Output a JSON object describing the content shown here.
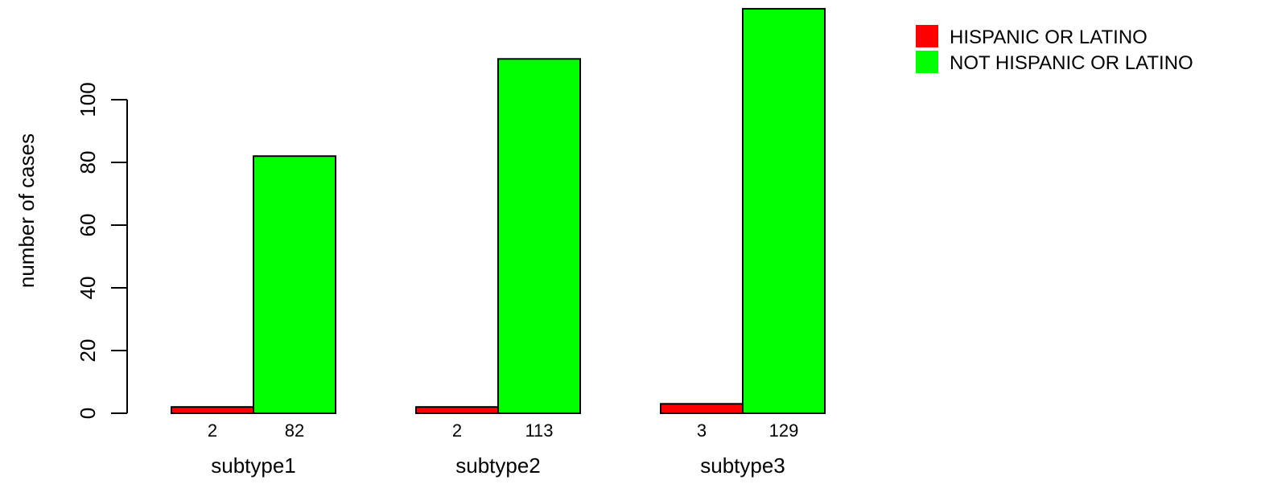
{
  "chart_data": {
    "type": "bar",
    "xlabel": "",
    "ylabel": "number of cases",
    "categories": [
      "subtype1",
      "subtype2",
      "subtype3"
    ],
    "series": [
      {
        "name": "HISPANIC OR LATINO",
        "color": "#ff0000",
        "values": [
          2,
          2,
          3
        ]
      },
      {
        "name": "NOT HISPANIC OR LATINO",
        "color": "#00ff00",
        "values": [
          82,
          113,
          129
        ]
      }
    ],
    "yticks": [
      "0",
      "20",
      "40",
      "60",
      "80",
      "100"
    ],
    "ylim": [
      0,
      129
    ],
    "grid": false,
    "legend_position": "top-right"
  }
}
